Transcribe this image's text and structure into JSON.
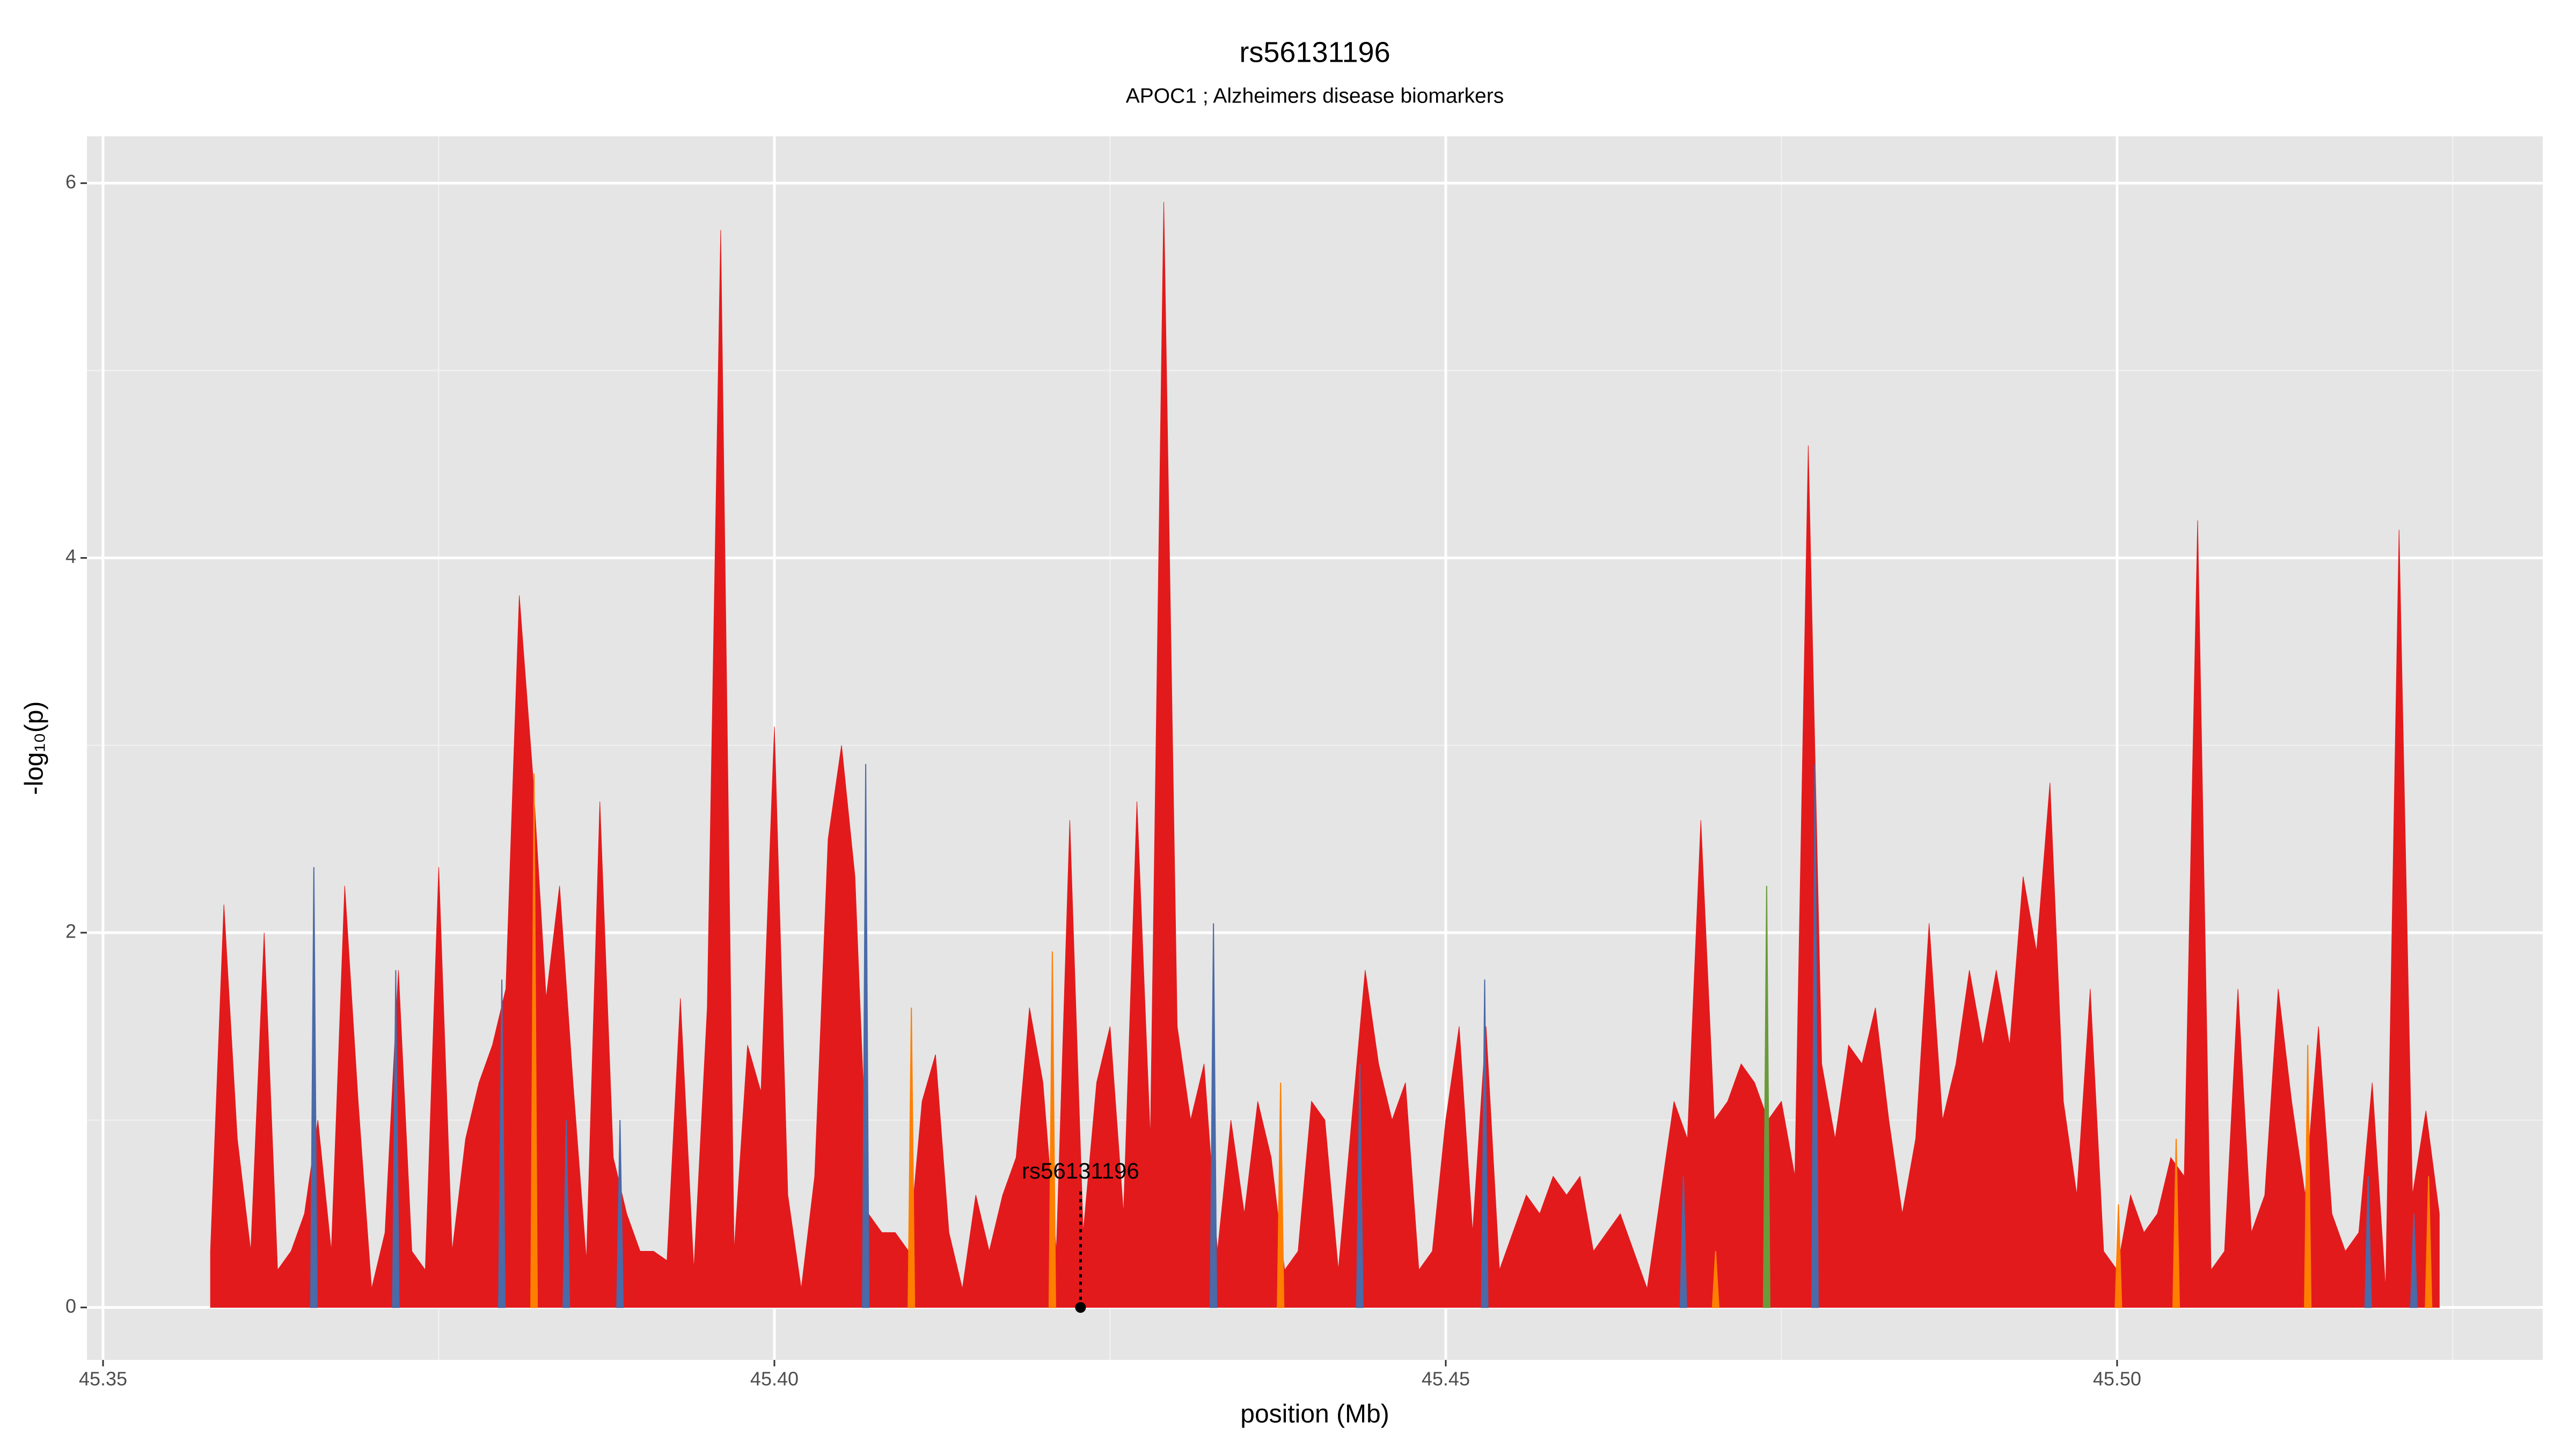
{
  "chart_data": {
    "type": "area",
    "title": "rs56131196",
    "subtitle": "APOC1 ; Alzheimers disease biomarkers",
    "x_label": "position (Mb)",
    "y_label": "-log₁₀(p)",
    "xlim": [
      45.3488,
      45.5317
    ],
    "ylim": [
      -0.28,
      6.25
    ],
    "xticks": [
      45.35,
      {
        "value": 45.4,
        "label": "45.40"
      },
      45.45,
      {
        "value": 45.5,
        "label": "45.50"
      }
    ],
    "yticks": [
      0,
      2,
      4,
      6
    ],
    "grid": true,
    "x": [
      45.358,
      45.359,
      45.36,
      45.361,
      45.362,
      45.363,
      45.364,
      45.365,
      45.366,
      45.367,
      45.368,
      45.369,
      45.37,
      45.371,
      45.372,
      45.373,
      45.374,
      45.375,
      45.376,
      45.377,
      45.378,
      45.379,
      45.38,
      45.381,
      45.382,
      45.383,
      45.384,
      45.385,
      45.386,
      45.387,
      45.388,
      45.389,
      45.39,
      45.391,
      45.392,
      45.393,
      45.394,
      45.395,
      45.396,
      45.397,
      45.398,
      45.399,
      45.4,
      45.401,
      45.402,
      45.403,
      45.404,
      45.405,
      45.406,
      45.407,
      45.408,
      45.409,
      45.41,
      45.411,
      45.412,
      45.413,
      45.414,
      45.415,
      45.416,
      45.417,
      45.418,
      45.419,
      45.42,
      45.421,
      45.422,
      45.423,
      45.424,
      45.425,
      45.426,
      45.427,
      45.428,
      45.429,
      45.43,
      45.431,
      45.432,
      45.433,
      45.434,
      45.435,
      45.436,
      45.437,
      45.438,
      45.439,
      45.44,
      45.441,
      45.442,
      45.443,
      45.444,
      45.445,
      45.446,
      45.447,
      45.448,
      45.449,
      45.45,
      45.451,
      45.452,
      45.453,
      45.454,
      45.455,
      45.456,
      45.457,
      45.458,
      45.459,
      45.46,
      45.461,
      45.462,
      45.463,
      45.464,
      45.465,
      45.466,
      45.467,
      45.468,
      45.469,
      45.47,
      45.471,
      45.472,
      45.473,
      45.474,
      45.475,
      45.476,
      45.477,
      45.478,
      45.479,
      45.48,
      45.481,
      45.482,
      45.483,
      45.484,
      45.485,
      45.486,
      45.487,
      45.488,
      45.489,
      45.49,
      45.491,
      45.492,
      45.493,
      45.494,
      45.495,
      45.496,
      45.497,
      45.498,
      45.499,
      45.5,
      45.501,
      45.502,
      45.503,
      45.504,
      45.505,
      45.506,
      45.507,
      45.508,
      45.509,
      45.51,
      45.511,
      45.512,
      45.513,
      45.514,
      45.515,
      45.516,
      45.517,
      45.518,
      45.519,
      45.52,
      45.521,
      45.522,
      45.523,
      45.524
    ],
    "series": [
      {
        "color": "#e31a1c",
        "values": [
          0.3,
          2.15,
          0.9,
          0.3,
          2.0,
          0.2,
          0.3,
          0.5,
          1.0,
          0.3,
          2.25,
          1.1,
          0.1,
          0.4,
          1.8,
          0.3,
          0.2,
          2.35,
          0.3,
          0.9,
          1.2,
          1.4,
          1.7,
          3.8,
          2.85,
          1.65,
          2.25,
          1.2,
          0.25,
          2.7,
          0.8,
          0.5,
          0.3,
          0.3,
          0.25,
          1.65,
          0.2,
          1.6,
          5.75,
          0.3,
          1.4,
          1.15,
          3.1,
          0.6,
          0.1,
          0.7,
          2.5,
          3.0,
          2.3,
          0.5,
          0.4,
          0.4,
          0.3,
          1.1,
          1.35,
          0.4,
          0.1,
          0.6,
          0.3,
          0.6,
          0.8,
          1.6,
          1.2,
          0.3,
          2.6,
          0.4,
          1.2,
          1.5,
          0.5,
          2.7,
          0.9,
          5.9,
          1.5,
          1.0,
          1.3,
          0.3,
          1.0,
          0.5,
          1.1,
          0.8,
          0.2,
          0.3,
          1.1,
          1.0,
          0.2,
          1.0,
          1.8,
          1.3,
          1.0,
          1.2,
          0.2,
          0.3,
          1.0,
          1.5,
          0.4,
          1.5,
          0.2,
          0.4,
          0.6,
          0.5,
          0.7,
          0.6,
          0.7,
          0.3,
          0.4,
          0.5,
          0.3,
          0.1,
          0.6,
          1.1,
          0.9,
          2.6,
          1.0,
          1.1,
          1.3,
          1.2,
          1.0,
          1.1,
          0.7,
          4.6,
          1.3,
          0.9,
          1.4,
          1.3,
          1.6,
          1.0,
          0.5,
          0.9,
          2.05,
          1.0,
          1.3,
          1.8,
          1.4,
          1.8,
          1.4,
          2.3,
          1.9,
          2.8,
          1.1,
          0.6,
          1.7,
          0.3,
          0.2,
          0.6,
          0.4,
          0.5,
          0.8,
          0.7,
          4.2,
          0.2,
          0.3,
          1.7,
          0.4,
          0.6,
          1.7,
          1.1,
          0.6,
          1.5,
          0.5,
          0.3,
          0.4,
          1.2,
          0.1,
          4.15,
          0.6,
          1.05,
          0.5
        ]
      },
      {
        "color": "#ff7f00",
        "x": [
          45.3821,
          45.4102,
          45.4207,
          45.4377,
          45.4701,
          45.5001,
          45.5044,
          45.5142,
          45.5232
        ],
        "values": [
          2.85,
          1.6,
          1.9,
          1.2,
          0.3,
          0.55,
          0.9,
          1.4,
          0.7
        ]
      },
      {
        "color": "#4a6aa8",
        "x": [
          45.3657,
          45.3718,
          45.3797,
          45.3845,
          45.3885,
          45.4068,
          45.4327,
          45.4436,
          45.4529,
          45.4677,
          45.4775,
          45.5187,
          45.5221
        ],
        "values": [
          2.35,
          1.8,
          1.75,
          1.0,
          1.0,
          2.9,
          2.05,
          1.3,
          1.75,
          0.7,
          2.9,
          0.7,
          0.5
        ]
      },
      {
        "color": "#6b9a3a",
        "x": [
          45.4739
        ],
        "values": [
          2.25
        ]
      }
    ],
    "annotation": {
      "text": "rs56131196",
      "x": 45.4228,
      "y": 0.72
    },
    "marker": {
      "x": 45.4228,
      "y": 0
    }
  }
}
